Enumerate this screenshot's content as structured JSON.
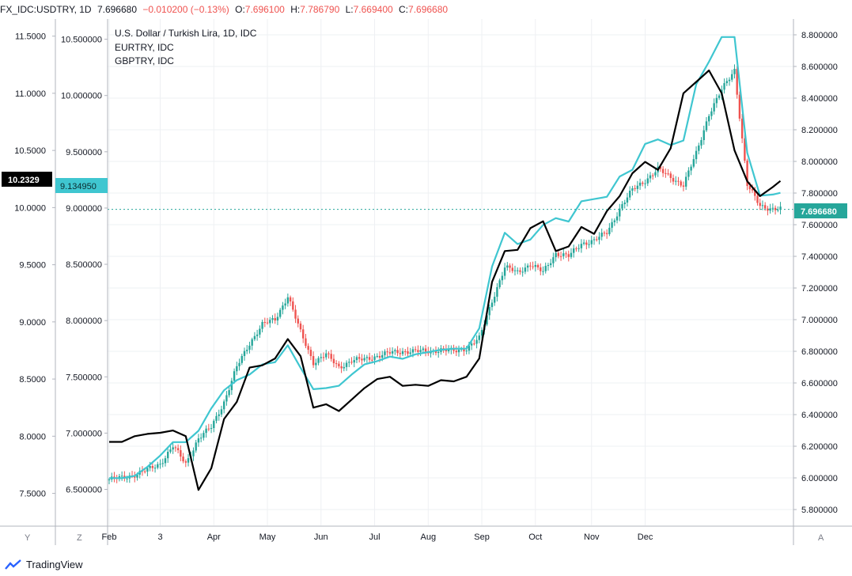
{
  "header": {
    "symbol": "FX_IDC:USDTRY, 1D",
    "last": "7.696680",
    "change": "−0.010200 (−0.13%)",
    "open_label": "O:",
    "open": "7.696100",
    "high_label": "H:",
    "high": "7.786790",
    "low_label": "L:",
    "low": "7.669400",
    "close_label": "C:",
    "close": "7.696680"
  },
  "legend": [
    "U.S. Dollar / Turkish Lira, 1D, IDC",
    "EURTRY, IDC",
    "GBPTRY, IDC"
  ],
  "axis_buttons": {
    "left": "Y",
    "middle": "Z",
    "right": "A"
  },
  "price_tags": {
    "gbptry": "10.2329",
    "eurtry": "9.134950",
    "usdtry": "7.696680"
  },
  "footer": {
    "brand": "TradingView"
  },
  "colors": {
    "up": "#26a69a",
    "down": "#ef5350",
    "eurtry": "#3fc6d0",
    "gbptry": "#000000",
    "grid": "#eef0f3",
    "axis": "#b2b5be"
  },
  "chart_data": {
    "type": "line",
    "title": "U.S. Dollar / Turkish Lira, 1D, IDC",
    "x_tick_labels": [
      "Feb",
      "3",
      "Apr",
      "May",
      "Jun",
      "Jul",
      "Aug",
      "Sep",
      "Oct",
      "Nov",
      "Dec"
    ],
    "axes": {
      "right_usdtry": {
        "ylim": [
          5.7,
          8.9
        ],
        "ticks": [
          "5.800000",
          "6.000000",
          "6.200000",
          "6.400000",
          "6.600000",
          "6.800000",
          "7.000000",
          "7.200000",
          "7.400000",
          "7.600000",
          "7.800000",
          "8.000000",
          "8.200000",
          "8.400000",
          "8.600000",
          "8.800000"
        ]
      },
      "mid_eurtry": {
        "ylim": [
          6.18,
          10.68
        ],
        "ticks": [
          "6.500000",
          "7.000000",
          "7.500000",
          "8.000000",
          "8.500000",
          "9.000000",
          "9.500000",
          "10.000000",
          "10.500000"
        ]
      },
      "left_gbptry": {
        "ylim": [
          7.22,
          11.65
        ],
        "ticks": [
          "7.5000",
          "8.0000",
          "8.5000",
          "9.0000",
          "9.5000",
          "10.0000",
          "10.5000",
          "11.0000",
          "11.5000"
        ]
      }
    },
    "series": [
      {
        "name": "USDTRY",
        "type": "candlestick",
        "axis": "right_usdtry",
        "x": [
          0,
          5,
          10,
          15,
          20,
          25,
          30,
          35,
          40,
          45,
          50,
          55,
          60,
          65,
          70,
          75,
          80,
          85,
          90,
          95,
          100,
          105,
          110,
          115,
          120,
          125,
          130,
          135,
          140,
          145,
          150,
          155,
          160,
          165,
          170,
          175,
          180,
          185,
          190,
          195,
          200,
          205,
          210,
          215,
          220,
          225,
          230,
          235,
          240,
          245,
          250,
          255,
          260,
          263
        ],
        "close": [
          5.99,
          6.0,
          6.02,
          6.05,
          6.09,
          6.2,
          6.09,
          6.25,
          6.32,
          6.48,
          6.7,
          6.85,
          6.97,
          7.0,
          7.15,
          6.92,
          6.73,
          6.78,
          6.7,
          6.74,
          6.75,
          6.77,
          6.79,
          6.8,
          6.8,
          6.8,
          6.81,
          6.8,
          6.82,
          6.88,
          7.12,
          7.33,
          7.3,
          7.35,
          7.3,
          7.42,
          7.4,
          7.48,
          7.5,
          7.55,
          7.7,
          7.82,
          7.88,
          7.95,
          7.9,
          7.85,
          8.05,
          8.3,
          8.45,
          8.58,
          7.85,
          7.72,
          7.7,
          7.697
        ]
      },
      {
        "name": "EURTRY",
        "axis": "mid_eurtry",
        "x": [
          0,
          5,
          10,
          15,
          20,
          25,
          30,
          35,
          40,
          45,
          50,
          55,
          60,
          65,
          70,
          75,
          80,
          85,
          90,
          95,
          100,
          105,
          110,
          115,
          120,
          125,
          130,
          135,
          140,
          145,
          150,
          155,
          160,
          165,
          170,
          175,
          180,
          185,
          190,
          195,
          200,
          205,
          210,
          215,
          220,
          225,
          230,
          235,
          240,
          245,
          250,
          255,
          260,
          263
        ],
        "values": [
          6.6,
          6.6,
          6.62,
          6.7,
          6.8,
          6.92,
          6.92,
          7.02,
          7.22,
          7.38,
          7.47,
          7.52,
          7.61,
          7.63,
          7.78,
          7.58,
          7.39,
          7.4,
          7.42,
          7.52,
          7.61,
          7.64,
          7.68,
          7.66,
          7.7,
          7.72,
          7.74,
          7.75,
          7.75,
          7.93,
          8.48,
          8.78,
          8.68,
          8.72,
          8.85,
          8.91,
          8.88,
          9.06,
          9.08,
          9.1,
          9.28,
          9.34,
          9.57,
          9.61,
          9.56,
          9.6,
          10.1,
          10.3,
          10.52,
          10.52,
          9.49,
          9.11,
          9.12,
          9.135
        ]
      },
      {
        "name": "GBPTRY",
        "axis": "left_gbptry",
        "x": [
          0,
          5,
          10,
          15,
          20,
          25,
          30,
          35,
          40,
          45,
          50,
          55,
          60,
          65,
          70,
          75,
          80,
          85,
          90,
          95,
          100,
          105,
          110,
          115,
          120,
          125,
          130,
          135,
          140,
          145,
          150,
          155,
          160,
          165,
          170,
          175,
          180,
          185,
          190,
          195,
          200,
          205,
          210,
          215,
          220,
          225,
          230,
          235,
          240,
          245,
          250,
          255,
          260,
          263
        ],
        "values": [
          7.95,
          7.95,
          8.0,
          8.02,
          8.03,
          8.05,
          8.0,
          7.53,
          7.72,
          8.15,
          8.3,
          8.6,
          8.62,
          8.68,
          8.85,
          8.7,
          8.25,
          8.28,
          8.22,
          8.32,
          8.42,
          8.5,
          8.52,
          8.44,
          8.45,
          8.44,
          8.49,
          8.48,
          8.52,
          8.68,
          9.35,
          9.62,
          9.63,
          9.82,
          9.88,
          9.62,
          9.66,
          9.83,
          9.77,
          9.97,
          10.1,
          10.3,
          10.4,
          10.33,
          10.52,
          11.0,
          11.1,
          11.2,
          11.0,
          10.5,
          10.23,
          10.1,
          10.18,
          10.233
        ]
      }
    ]
  }
}
